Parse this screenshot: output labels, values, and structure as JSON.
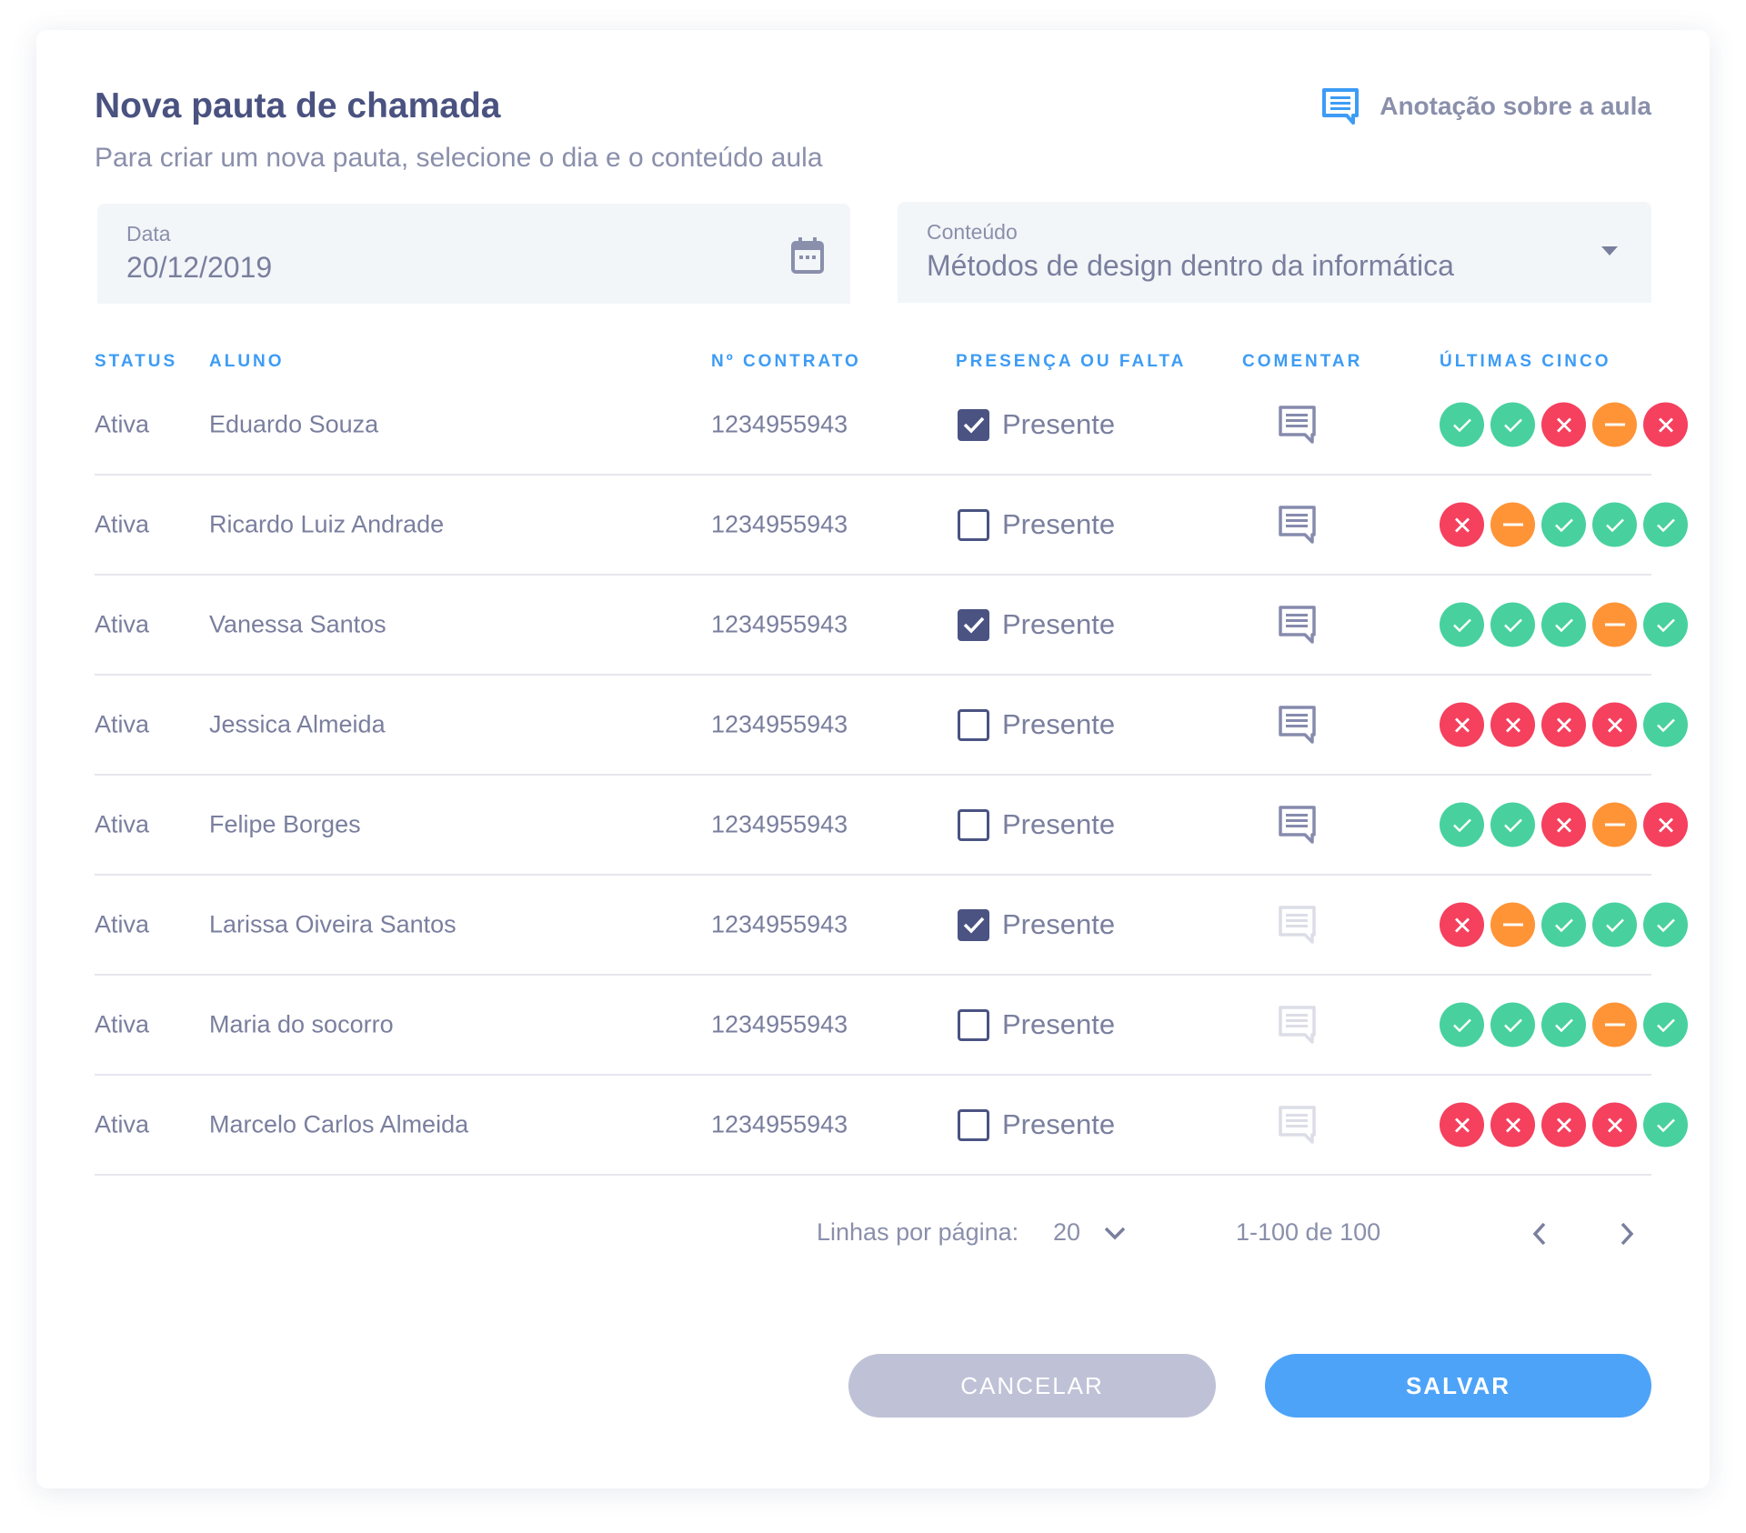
{
  "header": {
    "title": "Nova pauta de chamada",
    "subtitle": "Para criar um nova pauta, selecione o dia e o conteúdo aula",
    "note_label": "Anotação sobre a aula",
    "note_icon": "comment-icon"
  },
  "form": {
    "date": {
      "label": "Data",
      "value": "20/12/2019",
      "icon": "calendar-icon"
    },
    "content": {
      "label": "Conteúdo",
      "value": "Métodos de design dentro da informática",
      "icon": "dropdown-arrow-icon"
    }
  },
  "table": {
    "columns": [
      "STATUS",
      "ALUNO",
      "Nº CONTRATO",
      "PRESENÇA OU FALTA",
      "COMENTAR",
      "ÚLTIMAS CINCO"
    ],
    "rows": [
      {
        "status": "Ativa",
        "name": "Eduardo Souza",
        "contract": "1234955943",
        "present": true,
        "presence_label": "Presente",
        "comment_enabled": true,
        "last_five": [
          "ok",
          "ok",
          "x",
          "-",
          "x"
        ]
      },
      {
        "status": "Ativa",
        "name": "Ricardo Luiz Andrade",
        "contract": "1234955943",
        "present": false,
        "presence_label": "Presente",
        "comment_enabled": true,
        "last_five": [
          "x",
          "-",
          "ok",
          "ok",
          "ok"
        ]
      },
      {
        "status": "Ativa",
        "name": "Vanessa Santos",
        "contract": "1234955943",
        "present": true,
        "presence_label": "Presente",
        "comment_enabled": true,
        "last_five": [
          "ok",
          "ok",
          "ok",
          "-",
          "ok"
        ]
      },
      {
        "status": "Ativa",
        "name": "Jessica Almeida",
        "contract": "1234955943",
        "present": false,
        "presence_label": "Presente",
        "comment_enabled": true,
        "last_five": [
          "x",
          "x",
          "x",
          "x",
          "ok"
        ]
      },
      {
        "status": "Ativa",
        "name": "Felipe Borges",
        "contract": "1234955943",
        "present": false,
        "presence_label": "Presente",
        "comment_enabled": true,
        "last_five": [
          "ok",
          "ok",
          "x",
          "-",
          "x"
        ]
      },
      {
        "status": "Ativa",
        "name": "Larissa Oiveira Santos",
        "contract": "1234955943",
        "present": true,
        "presence_label": "Presente",
        "comment_enabled": false,
        "last_five": [
          "x",
          "-",
          "ok",
          "ok",
          "ok"
        ]
      },
      {
        "status": "Ativa",
        "name": "Maria do socorro",
        "contract": "1234955943",
        "present": false,
        "presence_label": "Presente",
        "comment_enabled": false,
        "last_five": [
          "ok",
          "ok",
          "ok",
          "-",
          "ok"
        ]
      },
      {
        "status": "Ativa",
        "name": "Marcelo Carlos Almeida",
        "contract": "1234955943",
        "present": false,
        "presence_label": "Presente",
        "comment_enabled": false,
        "last_five": [
          "x",
          "x",
          "x",
          "x",
          "ok"
        ]
      }
    ]
  },
  "pagination": {
    "rows_label": "Linhas por página:",
    "rows_value": "20",
    "range": "1-100 de 100"
  },
  "actions": {
    "cancel": "CANCELAR",
    "save": "SALVAR"
  },
  "colors": {
    "ok": "#48d19e",
    "x": "#f5405e",
    "-": "#ff9437",
    "accent": "#3d9cf5",
    "checkbox": "#4a5382"
  }
}
